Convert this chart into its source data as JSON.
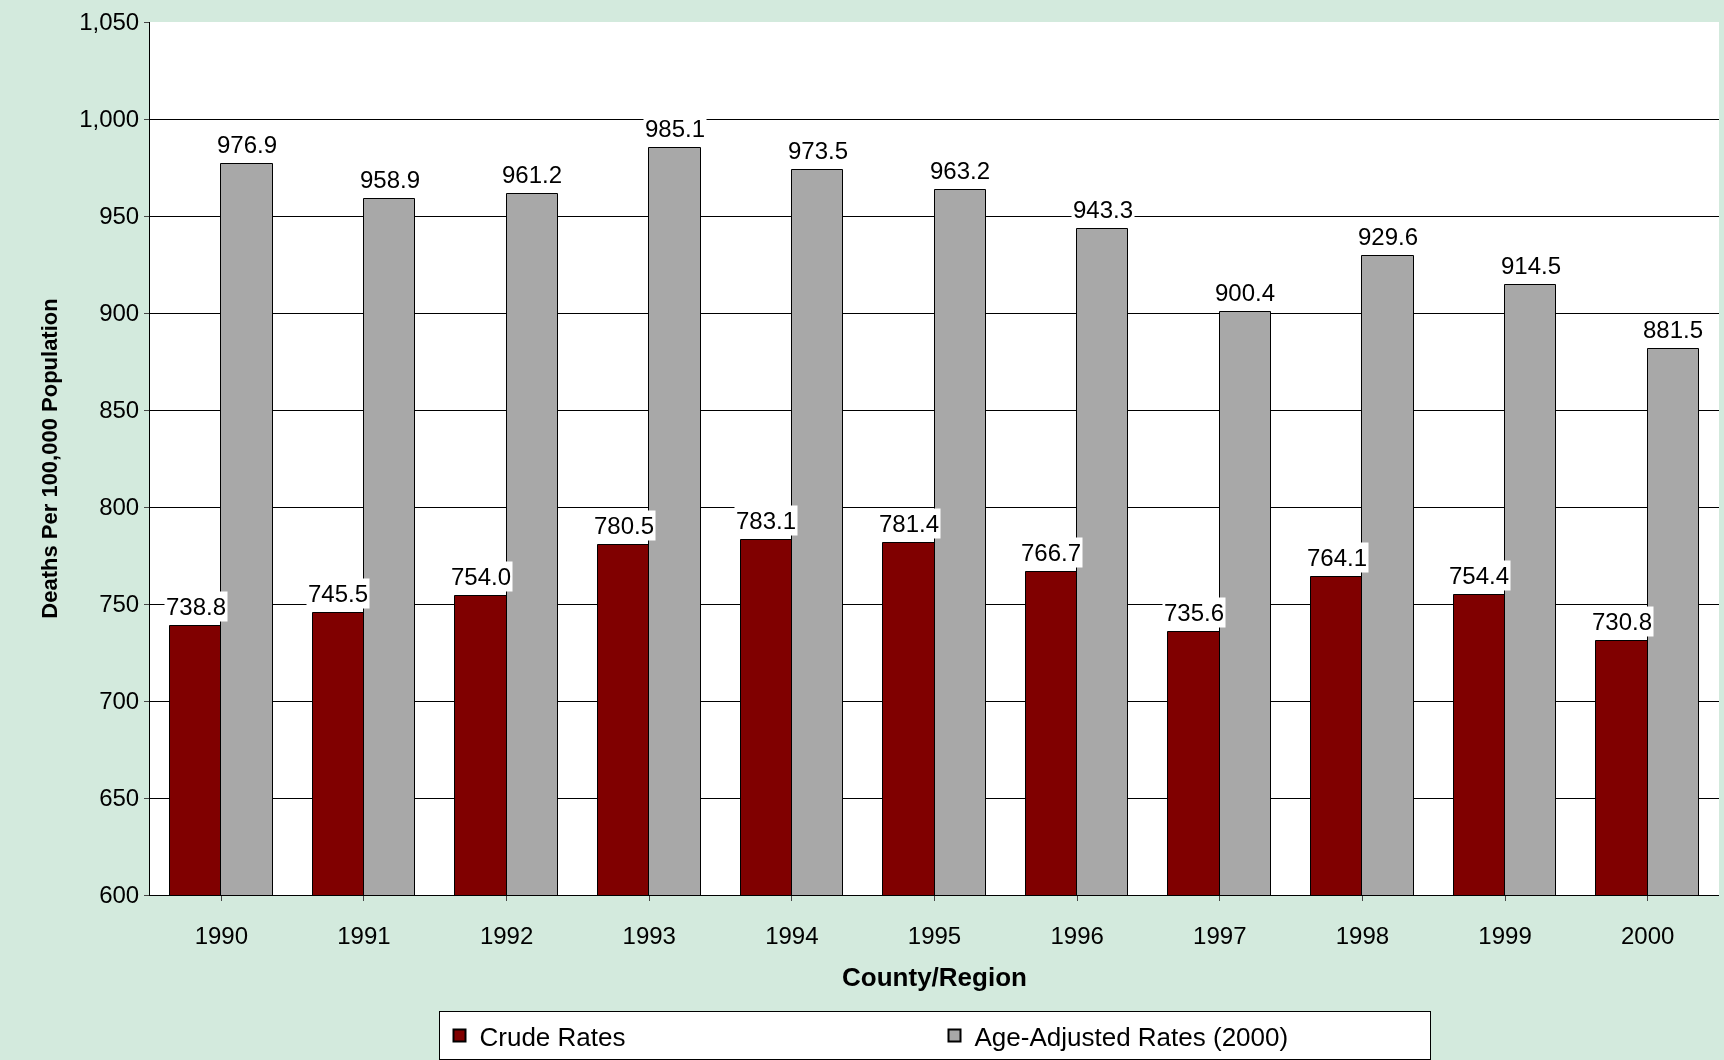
{
  "chart_data": {
    "type": "bar",
    "xlabel": "County/Region",
    "ylabel": "Deaths Per 100,000 Population",
    "categories": [
      "1990",
      "1991",
      "1992",
      "1993",
      "1994",
      "1995",
      "1996",
      "1997",
      "1998",
      "1999",
      "2000"
    ],
    "series": [
      {
        "name": "Crude Rates",
        "color": "#800000",
        "values": [
          738.8,
          745.5,
          754.0,
          780.5,
          783.1,
          781.4,
          766.7,
          735.6,
          764.1,
          754.4,
          730.8
        ],
        "value_labels": [
          "738.8",
          "745.5",
          "754.0",
          "780.5",
          "783.1",
          "781.4",
          "766.7",
          "735.6",
          "764.1",
          "754.4",
          "730.8"
        ]
      },
      {
        "name": "Age-Adjusted Rates (2000)",
        "color": "#a8a8a8",
        "values": [
          976.9,
          958.9,
          961.2,
          985.1,
          973.5,
          963.2,
          943.3,
          900.4,
          929.6,
          914.5,
          881.5
        ],
        "value_labels": [
          "976.9",
          "958.9",
          "961.2",
          "985.1",
          "973.5",
          "963.2",
          "943.3",
          "900.4",
          "929.6",
          "914.5",
          "881.5"
        ]
      }
    ],
    "ylim": [
      600,
      1050
    ],
    "yticks": [
      600,
      650,
      700,
      750,
      800,
      850,
      900,
      950,
      {
        "value": 1000,
        "label": "1,000"
      },
      {
        "value": 1050,
        "label": "1,050"
      }
    ],
    "grid": "y",
    "legend": "bottom"
  }
}
